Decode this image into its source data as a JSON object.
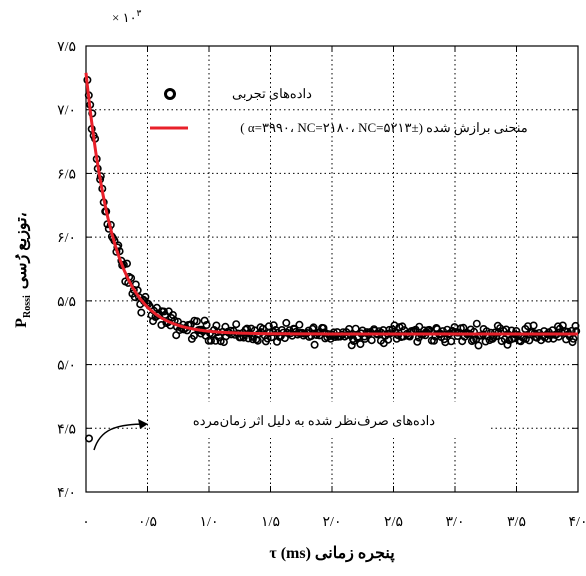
{
  "chart_data": {
    "type": "scatter",
    "exponent_label": "× ۱۰",
    "exponent_sup": "۳",
    "xlabel": "پنجره زمانی τ (ms)",
    "ylabel": "توزیع رُسی،",
    "ylabel_sub": "Rossi",
    "ylabel_var": "P",
    "xlim": [
      0,
      4.0
    ],
    "ylim": [
      4.0,
      7.5
    ],
    "x_ticks": [
      0,
      0.5,
      1.0,
      1.5,
      2.0,
      2.5,
      3.0,
      3.5,
      4.0
    ],
    "x_tick_labels": [
      "۰",
      "۰/۵",
      "۱/۰",
      "۱/۵",
      "۲/۰",
      "۲/۵",
      "۳/۰",
      "۳/۵",
      "۴/۰"
    ],
    "y_ticks": [
      4.0,
      4.5,
      5.0,
      5.5,
      6.0,
      6.5,
      7.0,
      7.5
    ],
    "y_tick_labels": [
      "۴/۰",
      "۴/۵",
      "۵/۰",
      "۵/۵",
      "۶/۰",
      "۶/۵",
      "۷/۰",
      "۷/۵"
    ],
    "grid": true,
    "legend_position": "top",
    "series": [
      {
        "name": "داده‌های تجربی",
        "kind": "markers",
        "color": "#000000",
        "note": "approx. 360 points sampled uniformly across τ, following fit curve with scatter",
        "model": {
          "baseline": 5.24,
          "amplitude": 2.05,
          "decay_ms": 0.22,
          "noise": 0.05
        }
      },
      {
        "name": "منحنی برازش شده (±α=۳۹۹۰، NC=۲۱۸۰، NC=۵۲۱۳ )",
        "kind": "line",
        "color": "#e8202a",
        "model": {
          "baseline": 5.24,
          "amplitude": 2.05,
          "decay_ms": 0.22
        }
      }
    ],
    "outlier_point": {
      "x": 0.0,
      "y": 4.42
    },
    "annotation": "داده‌های صرف‌نظر شده به دلیل اثر زمان‌مرده"
  }
}
